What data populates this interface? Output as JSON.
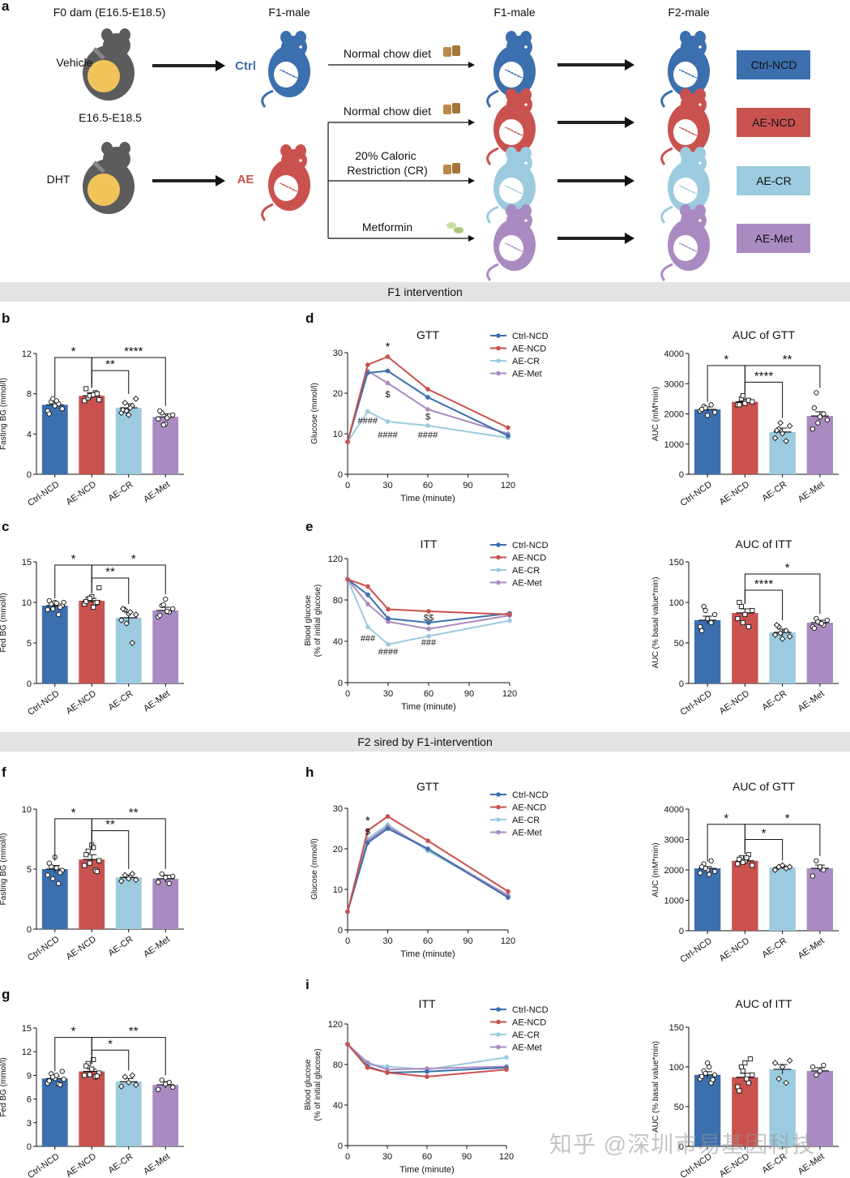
{
  "colors": {
    "ctrl": "#3b6fae",
    "ncd": "#c9524f",
    "cr": "#9ccbe0",
    "met": "#a98bc1",
    "dam": "#5c5c5c",
    "belly": "#f1c45b",
    "band": "#e3e3e3"
  },
  "schematic": {
    "panel_label": "a",
    "col_titles": [
      "F0 dam (E16.5-E18.5)",
      "F1-male",
      "F1-male",
      "F2-male"
    ],
    "vehicle_label": "Vehicle",
    "dht_label": "DHT",
    "mid_label": "E16.5-E18.5",
    "ctrl_label": "Ctrl",
    "ae_label": "AE",
    "arms": [
      {
        "text": "Normal chow diet",
        "text2": "",
        "box": "Ctrl-NCD",
        "color": "ctrl",
        "icon": "chow-icon"
      },
      {
        "text": "Normal chow diet",
        "text2": "",
        "box": "AE-NCD",
        "color": "ncd",
        "icon": "chow-icon"
      },
      {
        "text": "20% Caloric",
        "text2": "Restriction (CR)",
        "box": "AE-CR",
        "color": "cr",
        "icon": "chow-icon"
      },
      {
        "text": "Metformin",
        "text2": "",
        "box": "AE-Met",
        "color": "met",
        "icon": "pill-icon"
      }
    ]
  },
  "sections": [
    {
      "title": "F1 intervention"
    },
    {
      "title": "F2  sired by F1-intervention"
    }
  ],
  "watermark": "知乎 @深圳市易基因科技",
  "groups": [
    "Ctrl-NCD",
    "AE-NCD",
    "AE-CR",
    "AE-Met"
  ],
  "chart_data": [
    {
      "id": "b",
      "type": "bar",
      "ylabel": "Fasting BG (mmol/l)",
      "ylim": [
        0,
        12
      ],
      "yticks": [
        0,
        4,
        8,
        12
      ],
      "categories": [
        "Ctrl-NCD",
        "AE-NCD",
        "AE-CR",
        "AE-Met"
      ],
      "values": [
        6.9,
        7.8,
        6.6,
        5.7
      ],
      "sem": [
        0.3,
        0.3,
        0.4,
        0.3
      ],
      "points": [
        [
          6.3,
          7.2,
          6.8,
          7.0,
          6.5,
          6.0,
          7.5,
          7.3
        ],
        [
          7.3,
          7.6,
          7.9,
          8.1,
          7.4,
          8.5,
          7.8,
          7.9,
          8.0
        ],
        [
          6.1,
          7.1,
          5.9,
          6.8,
          7.5,
          6.4,
          6.3,
          6.6
        ],
        [
          5.5,
          6.1,
          5.0,
          5.8,
          5.9,
          6.3,
          4.9,
          5.6
        ]
      ],
      "sig": [
        {
          "a": 0,
          "b": 1,
          "label": "*",
          "y": 11.6
        },
        {
          "a": 1,
          "b": 2,
          "label": "**",
          "y": 10.3
        },
        {
          "a": 1,
          "b": 3,
          "label": "****",
          "y": 11.6
        }
      ]
    },
    {
      "id": "c",
      "type": "bar",
      "ylabel": "Fed BG (mmol/l)",
      "ylim": [
        0,
        15
      ],
      "yticks": [
        0,
        5,
        10,
        15
      ],
      "categories": [
        "Ctrl-NCD",
        "AE-NCD",
        "AE-CR",
        "AE-Met"
      ],
      "values": [
        9.6,
        10.2,
        8.1,
        9.0
      ],
      "sem": [
        0.3,
        0.3,
        0.7,
        0.4
      ],
      "points": [
        [
          9.1,
          9.8,
          10.0,
          8.5,
          9.6,
          10.2,
          9.2,
          9.9,
          9.4,
          10.0
        ],
        [
          9.8,
          10.4,
          10.7,
          9.9,
          11.8,
          10.1,
          10.5,
          9.4,
          10.0
        ],
        [
          7.8,
          9.1,
          8.6,
          5.0,
          8.5,
          9.2,
          7.4,
          8.8
        ],
        [
          8.2,
          9.6,
          10.4,
          8.8,
          9.2,
          8.4,
          9.7,
          8.9
        ]
      ],
      "sig": [
        {
          "a": 0,
          "b": 1,
          "label": "*",
          "y": 14.6
        },
        {
          "a": 1,
          "b": 2,
          "label": "**",
          "y": 13.0
        },
        {
          "a": 1,
          "b": 3,
          "label": "*",
          "y": 14.6
        }
      ]
    },
    {
      "id": "d",
      "type": "line",
      "title": "GTT",
      "ylabel": "Glucose (mmol/l)",
      "xlabel": "Time (minute)",
      "x": [
        0,
        15,
        30,
        60,
        120
      ],
      "xticks": [
        0,
        30,
        60,
        90,
        120
      ],
      "ylim": [
        0,
        30
      ],
      "yticks": [
        0,
        10,
        20,
        30
      ],
      "series": [
        {
          "name": "Ctrl-NCD",
          "values": [
            8,
            25,
            25.5,
            19,
            9.5
          ]
        },
        {
          "name": "AE-NCD",
          "values": [
            8,
            27,
            29,
            21,
            11.5
          ]
        },
        {
          "name": "AE-CR",
          "values": [
            8,
            15.5,
            13,
            12,
            9
          ]
        },
        {
          "name": "AE-Met",
          "values": [
            8,
            25.5,
            22.5,
            16,
            10
          ]
        }
      ],
      "annotations": [
        {
          "x": 30,
          "y": 30.5,
          "text": "*"
        },
        {
          "x": 30,
          "y": 19,
          "text": "$"
        },
        {
          "x": 60,
          "y": 13.5,
          "text": "$"
        },
        {
          "x": 15,
          "y": 12.5,
          "text": "####"
        },
        {
          "x": 30,
          "y": 9,
          "text": "####"
        },
        {
          "x": 60,
          "y": 9,
          "text": "####"
        }
      ]
    },
    {
      "id": "d-auc",
      "type": "bar",
      "title": "AUC of GTT",
      "ylabel": "AUC (mM*min)",
      "ylim": [
        0,
        4000
      ],
      "yticks": [
        0,
        1000,
        2000,
        3000,
        4000
      ],
      "categories": [
        "Ctrl-NCD",
        "AE-NCD",
        "AE-CR",
        "AE-Met"
      ],
      "values": [
        2150,
        2400,
        1400,
        1930
      ],
      "sem": [
        80,
        90,
        130,
        140
      ],
      "points": [
        [
          2100,
          2250,
          1950,
          2300,
          2050,
          2150,
          2200
        ],
        [
          2300,
          2500,
          2350,
          2450,
          2400,
          2300,
          2600
        ],
        [
          1200,
          1500,
          1350,
          1100,
          1600,
          1450,
          1700
        ],
        [
          1500,
          2700,
          1900,
          2000,
          1800,
          2200,
          1700
        ]
      ],
      "sig": [
        {
          "a": 0,
          "b": 1,
          "label": "*",
          "y": 3600
        },
        {
          "a": 1,
          "b": 2,
          "label": "****",
          "y": 3050
        },
        {
          "a": 1,
          "b": 3,
          "label": "**",
          "y": 3600
        }
      ]
    },
    {
      "id": "e",
      "type": "line",
      "title": "ITT",
      "ylabel": "Blood glucose",
      "ylabel2": "(% of initial glucose)",
      "xlabel": "Time (minute)",
      "x": [
        0,
        15,
        30,
        60,
        120
      ],
      "xticks": [
        0,
        30,
        60,
        90,
        120
      ],
      "ylim": [
        0,
        120
      ],
      "yticks": [
        0,
        40,
        80,
        120
      ],
      "series": [
        {
          "name": "Ctrl-NCD",
          "values": [
            100,
            85,
            62,
            58,
            67
          ]
        },
        {
          "name": "AE-NCD",
          "values": [
            100,
            93,
            71,
            69,
            66
          ]
        },
        {
          "name": "AE-CR",
          "values": [
            100,
            54,
            37,
            45,
            60
          ]
        },
        {
          "name": "AE-Met",
          "values": [
            100,
            76,
            59,
            52,
            65
          ]
        }
      ],
      "annotations": [
        {
          "x": 60,
          "y": 60,
          "text": "$$"
        },
        {
          "x": 15,
          "y": 40,
          "text": "###"
        },
        {
          "x": 30,
          "y": 27,
          "text": "####"
        },
        {
          "x": 60,
          "y": 36,
          "text": "###"
        }
      ]
    },
    {
      "id": "e-auc",
      "type": "bar",
      "title": "AUC of ITT",
      "ylabel": "AUC (% basal value*min)",
      "ylim": [
        0,
        150
      ],
      "yticks": [
        0,
        50,
        100,
        150
      ],
      "categories": [
        "Ctrl-NCD",
        "AE-NCD",
        "AE-CR",
        "AE-Met"
      ],
      "values": [
        78,
        87,
        63,
        75
      ],
      "sem": [
        5,
        5,
        4,
        3
      ],
      "points": [
        [
          70,
          95,
          80,
          75,
          85,
          65,
          90
        ],
        [
          80,
          95,
          85,
          70,
          90,
          100,
          75
        ],
        [
          60,
          70,
          55,
          65,
          58,
          72,
          62
        ],
        [
          70,
          80,
          75,
          72,
          78,
          68,
          76,
          74
        ]
      ],
      "sig": [
        {
          "a": 1,
          "b": 2,
          "label": "****",
          "y": 115
        },
        {
          "a": 1,
          "b": 3,
          "label": "*",
          "y": 135
        }
      ]
    },
    {
      "id": "f",
      "type": "bar",
      "ylabel": "Fasting BG (mmol/l)",
      "ylim": [
        0,
        10
      ],
      "yticks": [
        0,
        5,
        10
      ],
      "categories": [
        "Ctrl-NCD",
        "AE-NCD",
        "AE-CR",
        "AE-Met"
      ],
      "values": [
        5.0,
        5.8,
        4.3,
        4.2
      ],
      "sem": [
        0.3,
        0.4,
        0.2,
        0.3
      ],
      "points": [
        [
          4.5,
          5.2,
          6.0,
          3.8,
          4.9,
          5.5,
          4.2,
          5.1,
          4.7
        ],
        [
          5.3,
          6.5,
          7.0,
          4.9,
          5.7,
          6.2,
          5.5,
          6.8,
          4.8
        ],
        [
          4.0,
          4.5,
          4.2,
          4.6,
          4.1
        ],
        [
          3.9,
          4.6,
          4.3,
          3.8,
          4.4
        ]
      ],
      "sig": [
        {
          "a": 0,
          "b": 1,
          "label": "*",
          "y": 9.2
        },
        {
          "a": 1,
          "b": 2,
          "label": "**",
          "y": 8.2
        },
        {
          "a": 1,
          "b": 3,
          "label": "**",
          "y": 9.2
        }
      ]
    },
    {
      "id": "g",
      "type": "bar",
      "ylabel": "Fed BG (mmol/l)",
      "ylim": [
        0,
        15
      ],
      "yticks": [
        0,
        3,
        6,
        9,
        12,
        15
      ],
      "categories": [
        "Ctrl-NCD",
        "AE-NCD",
        "AE-CR",
        "AE-Met"
      ],
      "values": [
        8.6,
        9.5,
        8.2,
        7.8
      ],
      "sem": [
        0.3,
        0.3,
        0.4,
        0.4
      ],
      "points": [
        [
          8.0,
          9.2,
          8.6,
          7.9,
          9.5,
          8.3,
          8.8,
          9.0,
          7.8,
          8.5
        ],
        [
          9.0,
          10.5,
          9.8,
          8.8,
          9.3,
          10.2,
          9.1,
          11.0,
          8.9
        ],
        [
          7.6,
          8.8,
          8.1,
          9.0,
          7.8
        ],
        [
          7.2,
          8.4,
          7.9,
          8.1,
          7.5
        ]
      ],
      "sig": [
        {
          "a": 0,
          "b": 1,
          "label": "*",
          "y": 13.8
        },
        {
          "a": 1,
          "b": 2,
          "label": "*",
          "y": 12.2
        },
        {
          "a": 1,
          "b": 3,
          "label": "**",
          "y": 13.8
        }
      ]
    },
    {
      "id": "h",
      "type": "line",
      "title": "GTT",
      "ylabel": "Glucose (mmol/l)",
      "xlabel": "Time  (minute)",
      "x": [
        0,
        15,
        30,
        60,
        120
      ],
      "xticks": [
        0,
        30,
        60,
        90,
        120
      ],
      "ylim": [
        0,
        30
      ],
      "yticks": [
        0,
        10,
        20,
        30
      ],
      "series": [
        {
          "name": "Ctrl-NCD",
          "values": [
            4.5,
            21.5,
            25,
            20,
            8
          ]
        },
        {
          "name": "AE-NCD",
          "values": [
            4.5,
            24.5,
            28,
            22,
            9.5
          ]
        },
        {
          "name": "AE-CR",
          "values": [
            4.5,
            22.5,
            26,
            19.5,
            8.5
          ]
        },
        {
          "name": "AE-Met",
          "values": [
            4.5,
            22,
            25.5,
            20,
            8.5
          ]
        }
      ],
      "annotations": [
        {
          "x": 15,
          "y": 26,
          "text": "*"
        },
        {
          "x": 15,
          "y": 23.5,
          "text": "$"
        }
      ]
    },
    {
      "id": "h-auc",
      "type": "bar",
      "title": "AUC of GTT",
      "ylabel": "AUC (mM*min)",
      "ylim": [
        0,
        4000
      ],
      "yticks": [
        0,
        1000,
        2000,
        3000,
        4000
      ],
      "categories": [
        "Ctrl-NCD",
        "AE-NCD",
        "AE-CR",
        "AE-Met"
      ],
      "values": [
        2050,
        2300,
        2080,
        2050
      ],
      "sem": [
        60,
        60,
        40,
        110
      ],
      "points": [
        [
          1900,
          2200,
          2000,
          2300,
          1950,
          2100,
          2050,
          1850
        ],
        [
          2200,
          2400,
          2300,
          2500,
          2150,
          2350,
          2250,
          2400
        ],
        [
          2000,
          2100,
          2150,
          2050,
          2100
        ],
        [
          1800,
          2300,
          2100,
          2000
        ]
      ],
      "sig": [
        {
          "a": 0,
          "b": 1,
          "label": "*",
          "y": 3500
        },
        {
          "a": 1,
          "b": 2,
          "label": "*",
          "y": 3000
        },
        {
          "a": 1,
          "b": 3,
          "label": "*",
          "y": 3500
        }
      ]
    },
    {
      "id": "i",
      "type": "line",
      "title": "ITT",
      "ylabel": "Blood glucose",
      "ylabel2": "(% of initial glucose)",
      "xlabel": "Time  (minute)",
      "x": [
        0,
        15,
        30,
        60,
        120
      ],
      "xticks": [
        0,
        30,
        60,
        90,
        120
      ],
      "ylim": [
        0,
        120
      ],
      "yticks": [
        0,
        40,
        80,
        120
      ],
      "series": [
        {
          "name": "Ctrl-NCD",
          "values": [
            100,
            78,
            72,
            73,
            77
          ]
        },
        {
          "name": "AE-NCD",
          "values": [
            100,
            77,
            72,
            68,
            75
          ]
        },
        {
          "name": "AE-CR",
          "values": [
            100,
            80,
            78,
            75,
            87
          ]
        },
        {
          "name": "AE-Met",
          "values": [
            100,
            82,
            75,
            76,
            78
          ]
        }
      ],
      "annotations": []
    },
    {
      "id": "i-auc",
      "type": "bar",
      "title": "AUC of ITT",
      "ylabel": "AUC (% basal value*min)",
      "ylim": [
        0,
        150
      ],
      "yticks": [
        0,
        50,
        100,
        150
      ],
      "categories": [
        "Ctrl-NCD",
        "AE-NCD",
        "AE-CR",
        "AE-Met"
      ],
      "values": [
        90,
        87,
        97,
        95
      ],
      "sem": [
        4,
        5,
        6,
        4
      ],
      "points": [
        [
          85,
          95,
          105,
          80,
          90,
          88,
          92,
          100,
          84
        ],
        [
          75,
          100,
          105,
          80,
          90,
          70,
          95,
          85,
          110
        ],
        [
          105,
          85,
          100,
          80,
          108
        ],
        [
          100,
          90,
          95,
          102
        ]
      ],
      "sig": []
    }
  ]
}
